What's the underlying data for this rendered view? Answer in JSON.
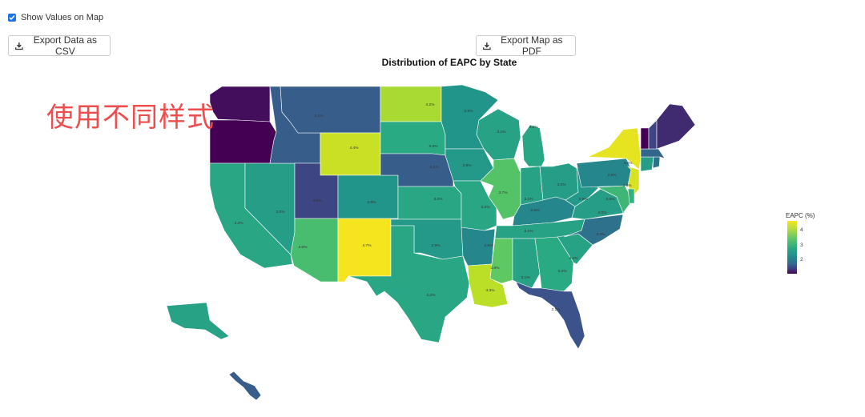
{
  "controls": {
    "show_values_label": "Show Values on Map",
    "show_values_checked": true,
    "export_csv_label": "Export Data as CSV",
    "export_pdf_label": "Export Map as PDF"
  },
  "chart_title": "Distribution of EAPC by State",
  "annotation": "使用不同样式",
  "legend": {
    "title": "EAPC (%)",
    "ticks": [
      "4",
      "3",
      "2"
    ]
  },
  "colors": {
    "annotation": "#ee4d4d",
    "checkbox": "#1a73e8"
  },
  "chart_data": {
    "type": "choropleth",
    "metric": "EAPC (%)",
    "value_range": [
      1.5,
      4.7
    ],
    "states": [
      {
        "state": "WA",
        "value": 1.6,
        "label": ""
      },
      {
        "state": "OR",
        "value": 1.5,
        "label": ""
      },
      {
        "state": "CA",
        "value": 3.2,
        "label": "3.2%"
      },
      {
        "state": "NV",
        "value": 3.0,
        "label": "3.0%"
      },
      {
        "state": "ID",
        "value": 2.2,
        "label": ""
      },
      {
        "state": "MT",
        "value": 2.2,
        "label": "2.2%"
      },
      {
        "state": "WY",
        "value": 4.4,
        "label": "4.4%"
      },
      {
        "state": "UT",
        "value": 2.0,
        "label": "2.0%"
      },
      {
        "state": "AZ",
        "value": 3.6,
        "label": "3.6%"
      },
      {
        "state": "CO",
        "value": 2.8,
        "label": "2.8%"
      },
      {
        "state": "NM",
        "value": 4.7,
        "label": "4.7%"
      },
      {
        "state": "ND",
        "value": 4.2,
        "label": "4.2%"
      },
      {
        "state": "SD",
        "value": 3.3,
        "label": "3.3%"
      },
      {
        "state": "NE",
        "value": 2.2,
        "label": "2.2%"
      },
      {
        "state": "KS",
        "value": 3.2,
        "label": "3.2%"
      },
      {
        "state": "OK",
        "value": 2.9,
        "label": "2.9%"
      },
      {
        "state": "TX",
        "value": 3.2,
        "label": "3.2%"
      },
      {
        "state": "MN",
        "value": 2.8,
        "label": "2.8%"
      },
      {
        "state": "IA",
        "value": 2.9,
        "label": "2.9%"
      },
      {
        "state": "MO",
        "value": 3.2,
        "label": "3.2%"
      },
      {
        "state": "AR",
        "value": 2.6,
        "label": "2.6%"
      },
      {
        "state": "LA",
        "value": 4.3,
        "label": "4.3%"
      },
      {
        "state": "WI",
        "value": 3.1,
        "label": "3.1%"
      },
      {
        "state": "IL",
        "value": 3.7,
        "label": "3.7%"
      },
      {
        "state": "MI",
        "value": 3.2,
        "label": "3.2%"
      },
      {
        "state": "IN",
        "value": 3.1,
        "label": "3.1%"
      },
      {
        "state": "OH",
        "value": 3.0,
        "label": "3.0%"
      },
      {
        "state": "KY",
        "value": 2.6,
        "label": "2.6%"
      },
      {
        "state": "TN",
        "value": 3.1,
        "label": "3.1%"
      },
      {
        "state": "MS",
        "value": 3.8,
        "label": "3.8%"
      },
      {
        "state": "AL",
        "value": 3.1,
        "label": "3.1%"
      },
      {
        "state": "GA",
        "value": 3.3,
        "label": "3.3%"
      },
      {
        "state": "FL",
        "value": 2.1,
        "label": "2.1%"
      },
      {
        "state": "SC",
        "value": 3.1,
        "label": "3.1%"
      },
      {
        "state": "NC",
        "value": 2.4,
        "label": "2.4%"
      },
      {
        "state": "VA",
        "value": 3.0,
        "label": "3.0%"
      },
      {
        "state": "WV",
        "value": 2.9,
        "label": "2.9%"
      },
      {
        "state": "PA",
        "value": 2.6,
        "label": "2.6%"
      },
      {
        "state": "NY",
        "value": 4.6,
        "label": "4.6%"
      },
      {
        "state": "NJ",
        "value": 4.5,
        "label": "4.5%"
      },
      {
        "state": "MD",
        "value": 3.5,
        "label": "3.5%"
      },
      {
        "state": "DE",
        "value": 3.4,
        "label": ""
      },
      {
        "state": "CT",
        "value": 3.0,
        "label": ""
      },
      {
        "state": "RI",
        "value": 2.4,
        "label": ""
      },
      {
        "state": "MA",
        "value": 2.3,
        "label": ""
      },
      {
        "state": "VT",
        "value": 1.5,
        "label": ""
      },
      {
        "state": "NH",
        "value": 2.0,
        "label": ""
      },
      {
        "state": "ME",
        "value": 1.8,
        "label": ""
      },
      {
        "state": "AK",
        "value": 3.1,
        "label": ""
      },
      {
        "state": "HI",
        "value": 2.2,
        "label": ""
      }
    ]
  }
}
